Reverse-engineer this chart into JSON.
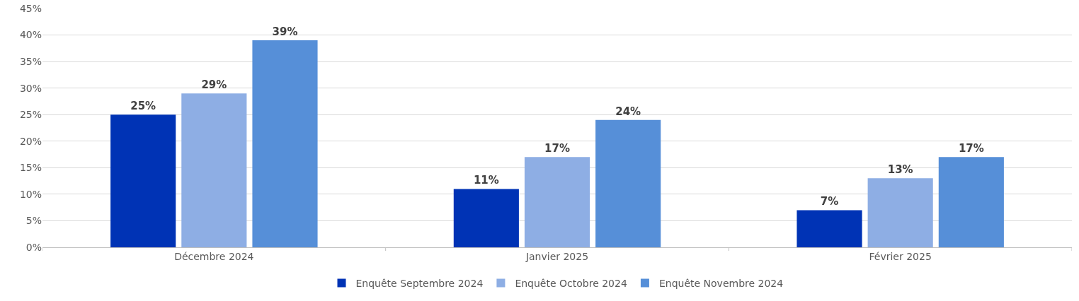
{
  "chart_data": {
    "type": "bar",
    "categories": [
      "Décembre 2024",
      "Janvier 2025",
      "Février 2025"
    ],
    "series": [
      {
        "name": "Enquête Septembre 2024",
        "color": "#0033b5",
        "values": [
          25,
          11,
          7
        ],
        "value_labels": [
          "25%",
          "11%",
          "7%"
        ]
      },
      {
        "name": "Enquête Octobre 2024",
        "color": "#8eaee4",
        "values": [
          29,
          17,
          13
        ],
        "value_labels": [
          "29%",
          "17%",
          "13%"
        ]
      },
      {
        "name": "Enquête Novembre 2024",
        "color": "#568fd8",
        "values": [
          39,
          24,
          17
        ],
        "value_labels": [
          "39%",
          "24%",
          "17%"
        ]
      }
    ],
    "ylim": [
      0,
      45
    ],
    "yticks": [
      {
        "value": 0,
        "label": "0%"
      },
      {
        "value": 5,
        "label": "5%"
      },
      {
        "value": 10,
        "label": "10%"
      },
      {
        "value": 15,
        "label": "15%"
      },
      {
        "value": 20,
        "label": "20%"
      },
      {
        "value": 25,
        "label": "25%"
      },
      {
        "value": 30,
        "label": "30%"
      },
      {
        "value": 35,
        "label": "35%"
      },
      {
        "value": 40,
        "label": "40%"
      },
      {
        "value": 45,
        "label": "45%"
      }
    ],
    "grid": "y",
    "legend": "bottom"
  }
}
